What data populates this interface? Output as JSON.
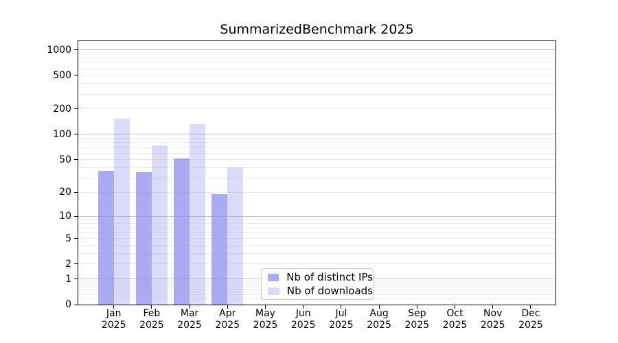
{
  "chart_data": {
    "type": "bar",
    "title": "SummarizedBenchmark 2025",
    "year_label": "2025",
    "categories": [
      "Jan",
      "Feb",
      "Mar",
      "Apr",
      "May",
      "Jun",
      "Jul",
      "Aug",
      "Sep",
      "Oct",
      "Nov",
      "Dec"
    ],
    "series": [
      {
        "name": "Nb of distinct IPs",
        "color": "#8888ee",
        "alpha": 0.7,
        "values": [
          37,
          35,
          52,
          19,
          null,
          null,
          null,
          null,
          null,
          null,
          null,
          null
        ]
      },
      {
        "name": "Nb of downloads",
        "color": "#8888ee",
        "alpha": 0.3,
        "values": [
          155,
          74,
          132,
          40,
          null,
          null,
          null,
          null,
          null,
          null,
          null,
          null
        ]
      }
    ],
    "y_axis": {
      "scale": "log1p",
      "tick_values": [
        0,
        1,
        2,
        5,
        10,
        20,
        50,
        100,
        200,
        500,
        1000
      ],
      "tick_labels": [
        "0",
        "1",
        "2",
        "5",
        "10",
        "20",
        "50",
        "100",
        "200",
        "500",
        "1000"
      ],
      "top_value": 1266,
      "major_gridlines": [
        1,
        10,
        100,
        1000
      ],
      "minor_gridlines": [
        0.2,
        0.3,
        0.4,
        0.5,
        0.6,
        0.7,
        0.8,
        0.9,
        2,
        3,
        4,
        5,
        6,
        7,
        8,
        9,
        20,
        30,
        40,
        50,
        60,
        70,
        80,
        90,
        200,
        300,
        400,
        500,
        600,
        700,
        800,
        900
      ]
    },
    "legend": {
      "position": "lower center"
    },
    "colors": {
      "bar_base": "#8888ee",
      "grid_major": "#c2c2c2",
      "grid_minor": "#eaeaea",
      "spine": "#000000",
      "background": "#ffffff"
    }
  }
}
